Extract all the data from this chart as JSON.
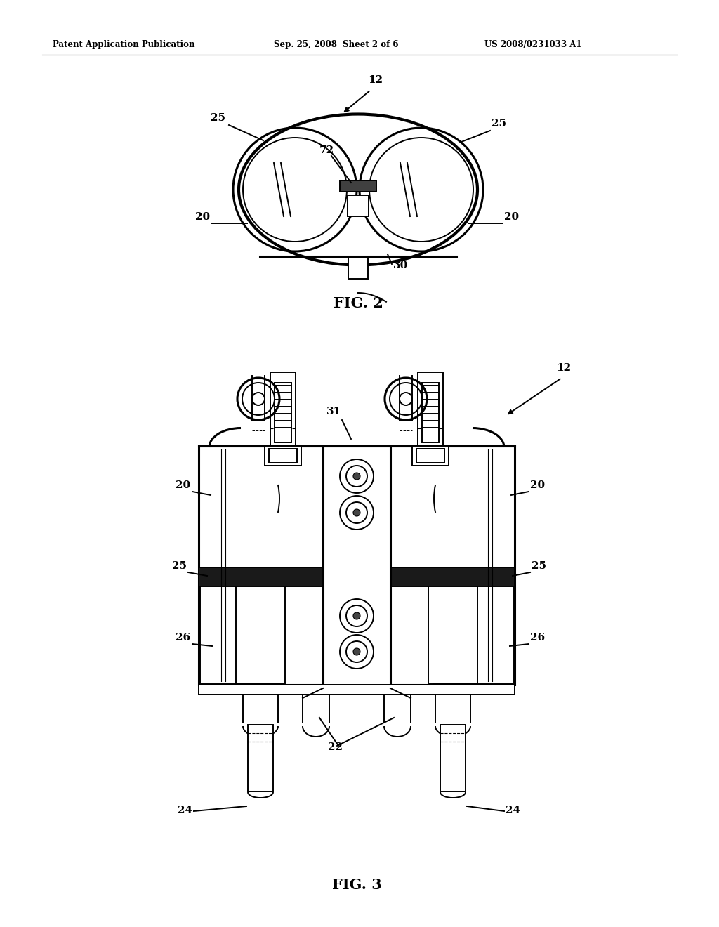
{
  "background_color": "#ffffff",
  "header_left": "Patent Application Publication",
  "header_center": "Sep. 25, 2008  Sheet 2 of 6",
  "header_right": "US 2008/0231033 A1",
  "fig2_label": "FIG. 2",
  "fig3_label": "FIG. 3",
  "lc": "#000000",
  "lw": 1.4,
  "lw2": 2.2,
  "lw3": 3.0
}
